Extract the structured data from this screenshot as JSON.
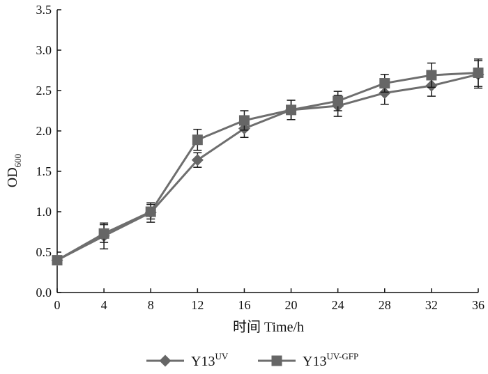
{
  "chart_data": {
    "type": "line",
    "title": "",
    "xlabel": "时间  Time/h",
    "ylabel_main": "OD",
    "ylabel_sub": "600",
    "x": [
      0,
      4,
      8,
      12,
      16,
      20,
      24,
      28,
      32,
      36
    ],
    "x_ticks": [
      "0",
      "4",
      "8",
      "12",
      "16",
      "20",
      "24",
      "28",
      "32",
      "36"
    ],
    "y_ticks": [
      "0.0",
      "0.5",
      "1.0",
      "1.5",
      "2.0",
      "2.5",
      "3.0",
      "3.5"
    ],
    "xlim": [
      0,
      36
    ],
    "ylim": [
      0,
      3.5
    ],
    "grid": false,
    "legend_position": "bottom",
    "series": [
      {
        "name": "Y13",
        "name_sup": "UV",
        "marker": "diamond",
        "values": [
          0.4,
          0.7,
          0.99,
          1.64,
          2.03,
          2.26,
          2.31,
          2.47,
          2.56,
          2.7
        ],
        "errors": [
          0.05,
          0.16,
          0.12,
          0.09,
          0.11,
          0.12,
          0.13,
          0.14,
          0.13,
          0.17
        ]
      },
      {
        "name": "Y13",
        "name_sup": "UV-GFP",
        "marker": "square",
        "values": [
          0.4,
          0.73,
          1.0,
          1.89,
          2.13,
          2.26,
          2.37,
          2.59,
          2.69,
          2.72
        ],
        "errors": [
          0.05,
          0.11,
          0.09,
          0.13,
          0.12,
          0.12,
          0.12,
          0.11,
          0.15,
          0.17
        ]
      }
    ],
    "colors": {
      "line": "#6e6e6e",
      "marker": "#666666",
      "error_bar": "#1a1a1a",
      "axis": "#111111"
    }
  }
}
